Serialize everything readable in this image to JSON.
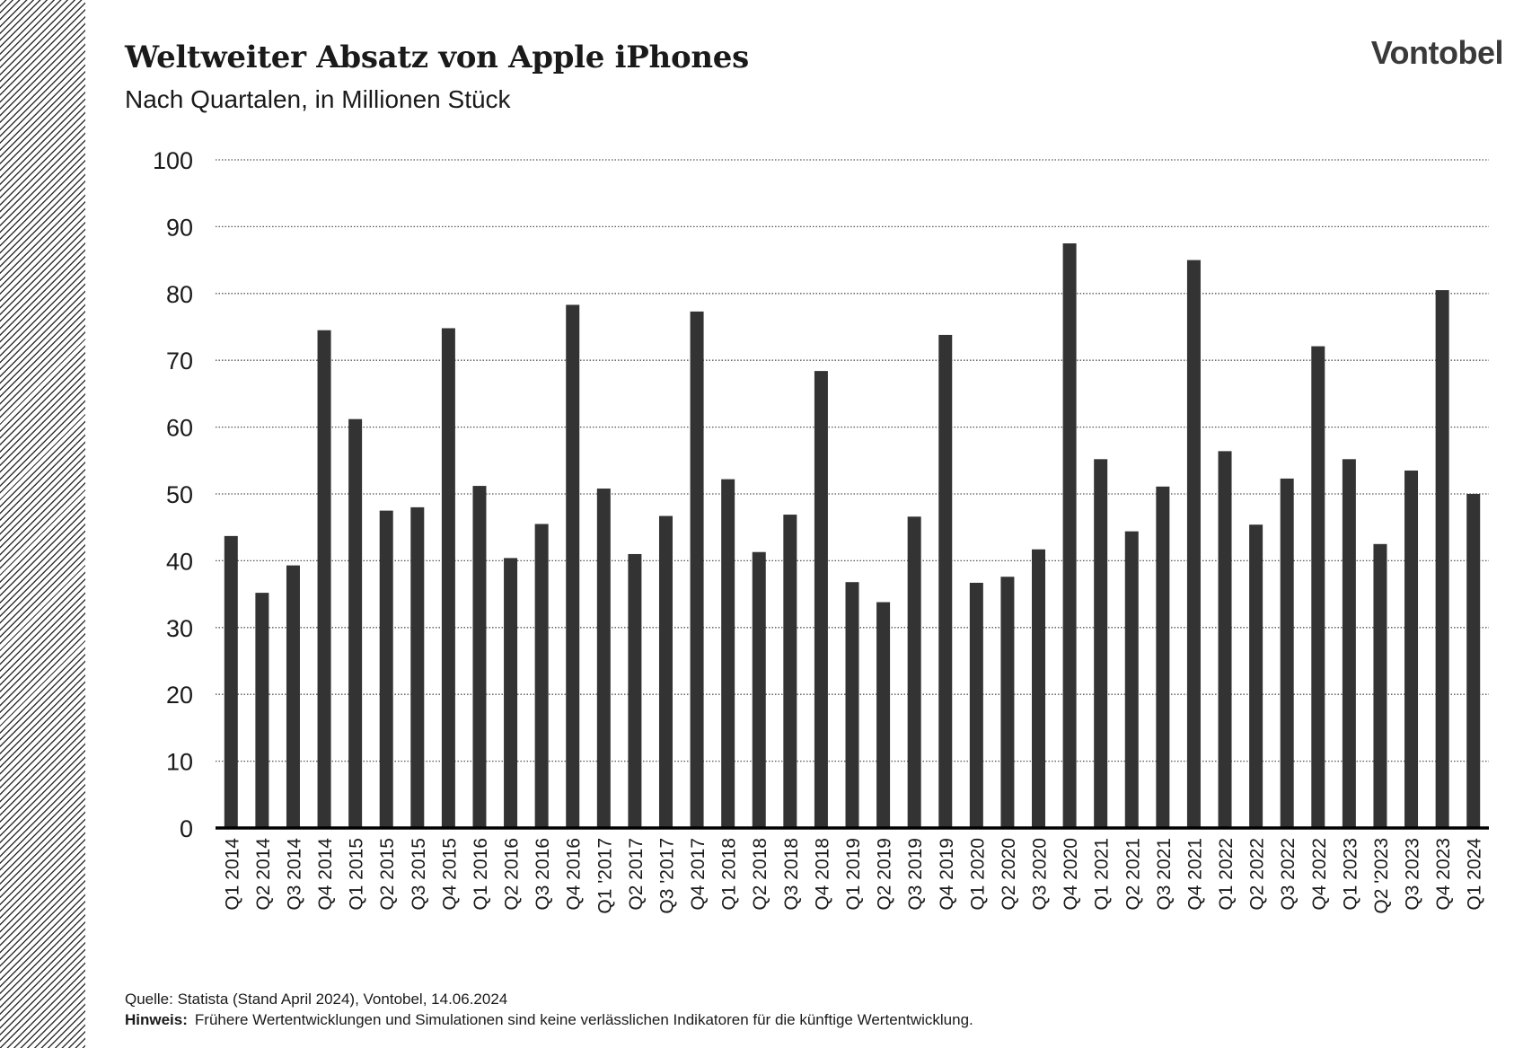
{
  "title": "Weltweiter Absatz von Apple iPhones",
  "subtitle": "Nach Quartalen, in Millionen Stück",
  "logo": "Vontobel",
  "footer": {
    "source": "Quelle: Statista (Stand April 2024), Vontobel, 14.06.2024",
    "hint_label": "Hinweis:",
    "hint_text": "Frühere Wertentwicklungen und Simulationen sind keine verlässlichen Indikatoren für die künftige Wertentwicklung."
  },
  "colors": {
    "bar": "#333333",
    "grid": "#555555",
    "axis": "#000000"
  },
  "chart_data": {
    "type": "bar",
    "title": "Weltweiter Absatz von Apple iPhones",
    "subtitle": "Nach Quartalen, in Millionen Stück",
    "ylim": [
      0,
      100
    ],
    "yticks": [
      0,
      10,
      20,
      30,
      40,
      50,
      60,
      70,
      80,
      90,
      100
    ],
    "grid": "horizontal dotted",
    "categories": [
      "Q1 2014",
      "Q2 2014",
      "Q3 2014",
      "Q4 2014",
      "Q1 2015",
      "Q2 2015",
      "Q3 2015",
      "Q4 2015",
      "Q1 2016",
      "Q2 2016",
      "Q3 2016",
      "Q4 2016",
      "Q1 '2017",
      "Q2 2017",
      "Q3 '2017",
      "Q4 2017",
      "Q1 2018",
      "Q2 2018",
      "Q3 2018",
      "Q4 2018",
      "Q1 2019",
      "Q2 2019",
      "Q3 2019",
      "Q4 2019",
      "Q1 2020",
      "Q2 2020",
      "Q3 2020",
      "Q4 2020",
      "Q1 2021",
      "Q2 2021",
      "Q3 2021",
      "Q4 2021",
      "Q1 2022",
      "Q2 2022",
      "Q3 2022",
      "Q4 2022",
      "Q1 2023",
      "Q2 '2023",
      "Q3 2023",
      "Q4 2023",
      "Q1 2024"
    ],
    "values": [
      43.7,
      35.2,
      39.3,
      74.5,
      61.2,
      47.5,
      48.0,
      74.8,
      51.2,
      40.4,
      45.5,
      78.3,
      50.8,
      41.0,
      46.7,
      77.3,
      52.2,
      41.3,
      46.9,
      68.4,
      36.8,
      33.8,
      46.6,
      73.8,
      36.7,
      37.6,
      41.7,
      87.5,
      55.2,
      44.4,
      51.1,
      85.0,
      56.4,
      45.4,
      52.3,
      72.1,
      55.2,
      42.5,
      53.5,
      80.5,
      50.0
    ]
  }
}
